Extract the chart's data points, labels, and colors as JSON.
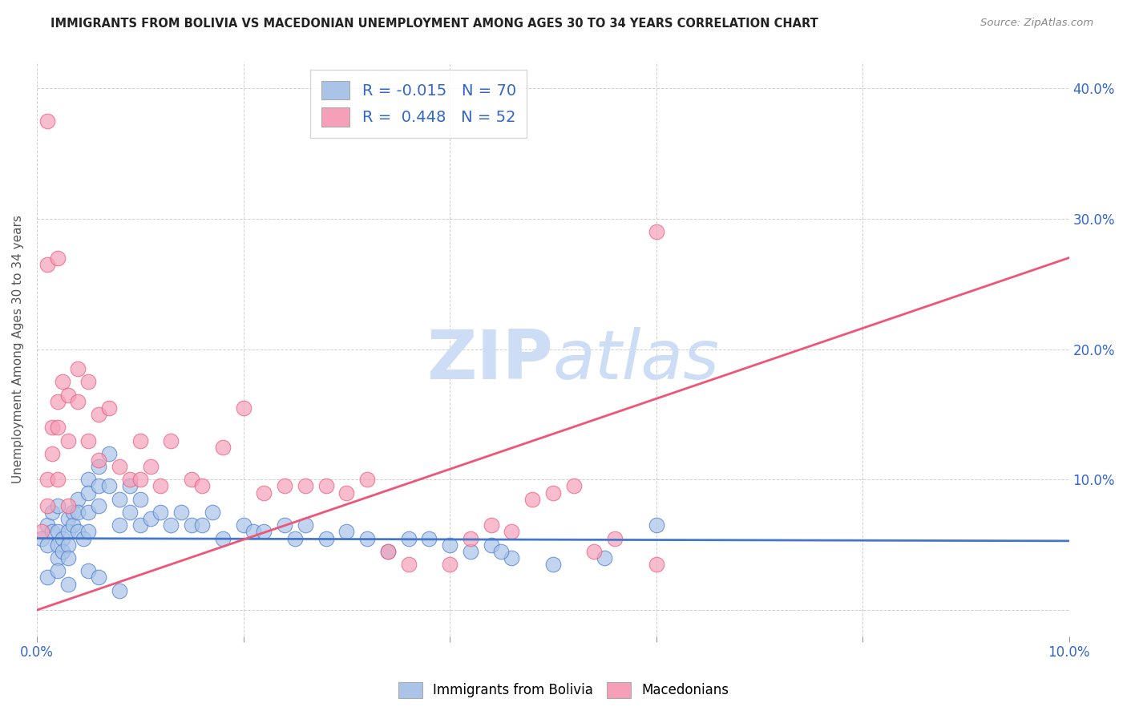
{
  "title": "IMMIGRANTS FROM BOLIVIA VS MACEDONIAN UNEMPLOYMENT AMONG AGES 30 TO 34 YEARS CORRELATION CHART",
  "source": "Source: ZipAtlas.com",
  "ylabel": "Unemployment Among Ages 30 to 34 years",
  "xlim": [
    0.0,
    0.1
  ],
  "ylim": [
    -0.02,
    0.42
  ],
  "color_blue": "#aac4e8",
  "color_pink": "#f5a0b8",
  "line_blue": "#4477cc",
  "line_pink": "#ee5577",
  "watermark_color": "#ccddf5",
  "legend_r1": "R = -0.015",
  "legend_n1": "N = 70",
  "legend_r2": "R =  0.448",
  "legend_n2": "N = 52",
  "blue_line_x": [
    0.0,
    0.1
  ],
  "blue_line_y": [
    0.055,
    0.053
  ],
  "pink_line_x": [
    0.0,
    0.1
  ],
  "pink_line_y": [
    0.0,
    0.27
  ],
  "blue_x": [
    0.0005,
    0.001,
    0.001,
    0.0015,
    0.0015,
    0.002,
    0.002,
    0.002,
    0.002,
    0.0025,
    0.0025,
    0.003,
    0.003,
    0.003,
    0.003,
    0.0035,
    0.0035,
    0.004,
    0.004,
    0.004,
    0.0045,
    0.005,
    0.005,
    0.005,
    0.005,
    0.006,
    0.006,
    0.006,
    0.007,
    0.007,
    0.008,
    0.008,
    0.009,
    0.009,
    0.01,
    0.01,
    0.011,
    0.012,
    0.013,
    0.014,
    0.015,
    0.016,
    0.017,
    0.018,
    0.02,
    0.021,
    0.022,
    0.024,
    0.025,
    0.026,
    0.028,
    0.03,
    0.032,
    0.034,
    0.036,
    0.038,
    0.04,
    0.042,
    0.044,
    0.046,
    0.001,
    0.002,
    0.003,
    0.005,
    0.006,
    0.008,
    0.045,
    0.05,
    0.055,
    0.06
  ],
  "blue_y": [
    0.055,
    0.065,
    0.05,
    0.075,
    0.06,
    0.08,
    0.06,
    0.05,
    0.04,
    0.055,
    0.045,
    0.07,
    0.06,
    0.05,
    0.04,
    0.075,
    0.065,
    0.085,
    0.075,
    0.06,
    0.055,
    0.1,
    0.09,
    0.075,
    0.06,
    0.11,
    0.095,
    0.08,
    0.12,
    0.095,
    0.085,
    0.065,
    0.095,
    0.075,
    0.085,
    0.065,
    0.07,
    0.075,
    0.065,
    0.075,
    0.065,
    0.065,
    0.075,
    0.055,
    0.065,
    0.06,
    0.06,
    0.065,
    0.055,
    0.065,
    0.055,
    0.06,
    0.055,
    0.045,
    0.055,
    0.055,
    0.05,
    0.045,
    0.05,
    0.04,
    0.025,
    0.03,
    0.02,
    0.03,
    0.025,
    0.015,
    0.045,
    0.035,
    0.04,
    0.065
  ],
  "pink_x": [
    0.0005,
    0.001,
    0.001,
    0.0015,
    0.0015,
    0.002,
    0.002,
    0.002,
    0.0025,
    0.003,
    0.003,
    0.003,
    0.004,
    0.004,
    0.005,
    0.005,
    0.006,
    0.006,
    0.007,
    0.008,
    0.009,
    0.01,
    0.01,
    0.011,
    0.012,
    0.013,
    0.015,
    0.016,
    0.018,
    0.02,
    0.022,
    0.024,
    0.026,
    0.028,
    0.03,
    0.032,
    0.034,
    0.036,
    0.04,
    0.042,
    0.044,
    0.046,
    0.048,
    0.05,
    0.052,
    0.054,
    0.056,
    0.06,
    0.001,
    0.001,
    0.002,
    0.06
  ],
  "pink_y": [
    0.06,
    0.1,
    0.08,
    0.14,
    0.12,
    0.16,
    0.14,
    0.1,
    0.175,
    0.165,
    0.13,
    0.08,
    0.185,
    0.16,
    0.175,
    0.13,
    0.15,
    0.115,
    0.155,
    0.11,
    0.1,
    0.13,
    0.1,
    0.11,
    0.095,
    0.13,
    0.1,
    0.095,
    0.125,
    0.155,
    0.09,
    0.095,
    0.095,
    0.095,
    0.09,
    0.1,
    0.045,
    0.035,
    0.035,
    0.055,
    0.065,
    0.06,
    0.085,
    0.09,
    0.095,
    0.045,
    0.055,
    0.035,
    0.265,
    0.375,
    0.27,
    0.29
  ]
}
